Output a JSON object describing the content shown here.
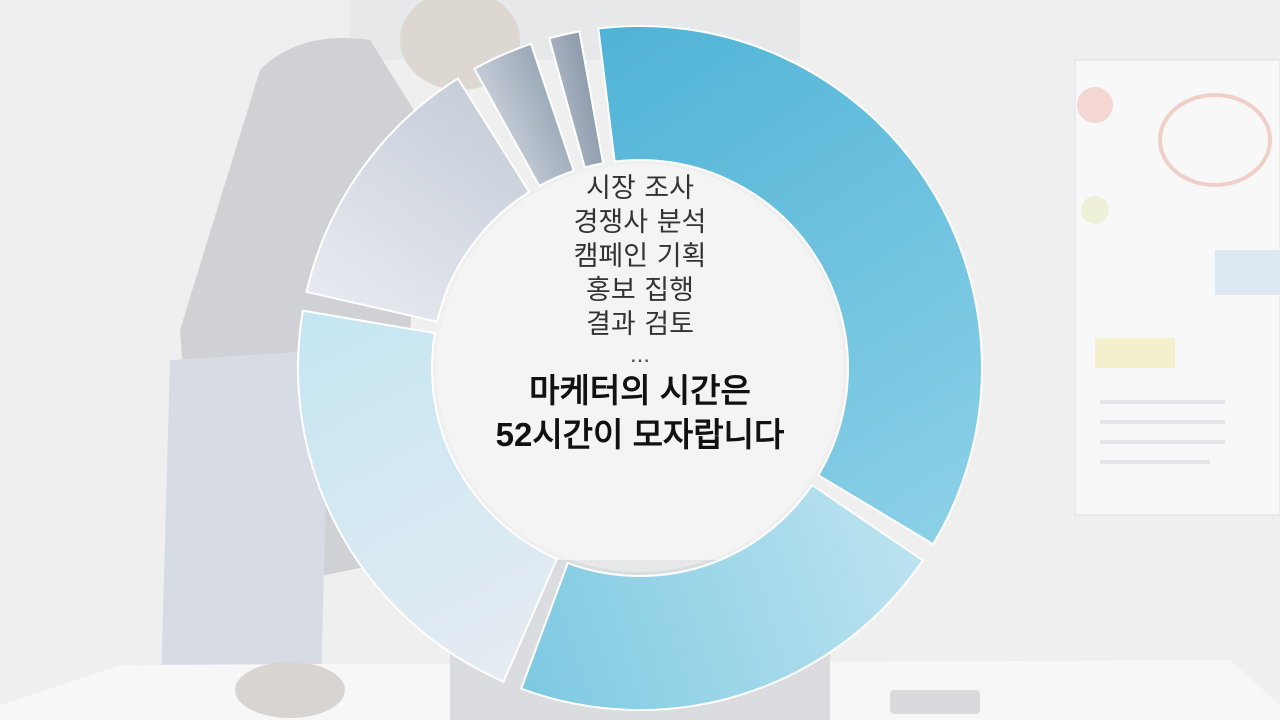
{
  "center": {
    "tasks": [
      "시장 조사",
      "경쟁사 분석",
      "캠페인 기획",
      "홍보 집행",
      "결과 검토"
    ],
    "ellipsis": "…",
    "headline_line1": "마케터의 시간은",
    "headline_line2": "52시간이 모자랍니다"
  },
  "chart_data": {
    "type": "pie",
    "variant": "donut",
    "title": "",
    "values": [
      37,
      22,
      22,
      13,
      3,
      1.5
    ],
    "colors": [
      [
        "#4fb3d6",
        "#8bd0e7"
      ],
      [
        "#bde3f0",
        "#7dc9e2"
      ],
      [
        "#e6ebf2",
        "#c3e6f2"
      ],
      [
        "#e7eaf0",
        "#c7ced9"
      ],
      [
        "#c5ccd6",
        "#9aa8b7"
      ],
      [
        "#a6b1c0",
        "#8e9bac"
      ]
    ]
  }
}
